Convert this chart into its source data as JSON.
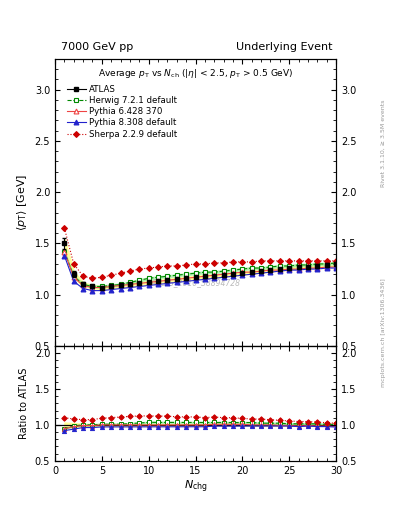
{
  "title_left": "7000 GeV pp",
  "title_right": "Underlying Event",
  "watermark": "ATLAS_2010_S8894728",
  "xlim": [
    0,
    30
  ],
  "ylim_main": [
    0.5,
    3.3
  ],
  "ylim_ratio": [
    0.5,
    2.1
  ],
  "yticks_main": [
    0.5,
    1.0,
    1.5,
    2.0,
    2.5,
    3.0
  ],
  "yticks_ratio": [
    0.5,
    1.0,
    1.5,
    2.0
  ],
  "x_atlas": [
    1,
    2,
    3,
    4,
    5,
    6,
    7,
    8,
    9,
    10,
    11,
    12,
    13,
    14,
    15,
    16,
    17,
    18,
    19,
    20,
    21,
    22,
    23,
    24,
    25,
    26,
    27,
    28,
    29,
    30
  ],
  "y_atlas": [
    1.5,
    1.2,
    1.1,
    1.08,
    1.07,
    1.08,
    1.09,
    1.1,
    1.11,
    1.12,
    1.13,
    1.14,
    1.15,
    1.16,
    1.17,
    1.18,
    1.18,
    1.19,
    1.2,
    1.21,
    1.22,
    1.23,
    1.24,
    1.25,
    1.26,
    1.27,
    1.27,
    1.28,
    1.29,
    1.3
  ],
  "y_atlas_err": [
    0.05,
    0.03,
    0.02,
    0.015,
    0.015,
    0.015,
    0.015,
    0.015,
    0.015,
    0.015,
    0.015,
    0.015,
    0.015,
    0.015,
    0.015,
    0.015,
    0.015,
    0.015,
    0.015,
    0.015,
    0.015,
    0.015,
    0.015,
    0.015,
    0.015,
    0.015,
    0.015,
    0.015,
    0.015,
    0.015
  ],
  "x_herwig": [
    1,
    2,
    3,
    4,
    5,
    6,
    7,
    8,
    9,
    10,
    11,
    12,
    13,
    14,
    15,
    16,
    17,
    18,
    19,
    20,
    21,
    22,
    23,
    24,
    25,
    26,
    27,
    28,
    29,
    30
  ],
  "y_herwig": [
    1.42,
    1.18,
    1.1,
    1.08,
    1.08,
    1.09,
    1.1,
    1.12,
    1.14,
    1.16,
    1.17,
    1.18,
    1.19,
    1.2,
    1.21,
    1.22,
    1.22,
    1.23,
    1.24,
    1.25,
    1.26,
    1.26,
    1.27,
    1.28,
    1.28,
    1.29,
    1.29,
    1.3,
    1.3,
    1.31
  ],
  "x_pythia6": [
    1,
    2,
    3,
    4,
    5,
    6,
    7,
    8,
    9,
    10,
    11,
    12,
    13,
    14,
    15,
    16,
    17,
    18,
    19,
    20,
    21,
    22,
    23,
    24,
    25,
    26,
    27,
    28,
    29,
    30
  ],
  "y_pythia6": [
    1.42,
    1.17,
    1.09,
    1.07,
    1.07,
    1.08,
    1.09,
    1.1,
    1.11,
    1.12,
    1.13,
    1.14,
    1.15,
    1.16,
    1.17,
    1.18,
    1.19,
    1.2,
    1.21,
    1.22,
    1.22,
    1.23,
    1.24,
    1.24,
    1.25,
    1.25,
    1.26,
    1.26,
    1.27,
    1.27
  ],
  "x_pythia8": [
    1,
    2,
    3,
    4,
    5,
    6,
    7,
    8,
    9,
    10,
    11,
    12,
    13,
    14,
    15,
    16,
    17,
    18,
    19,
    20,
    21,
    22,
    23,
    24,
    25,
    26,
    27,
    28,
    29,
    30
  ],
  "y_pythia8": [
    1.38,
    1.13,
    1.06,
    1.04,
    1.04,
    1.05,
    1.06,
    1.07,
    1.08,
    1.09,
    1.1,
    1.11,
    1.12,
    1.13,
    1.14,
    1.15,
    1.16,
    1.17,
    1.18,
    1.19,
    1.2,
    1.21,
    1.22,
    1.23,
    1.24,
    1.24,
    1.25,
    1.25,
    1.26,
    1.26
  ],
  "x_sherpa": [
    1,
    2,
    3,
    4,
    5,
    6,
    7,
    8,
    9,
    10,
    11,
    12,
    13,
    14,
    15,
    16,
    17,
    18,
    19,
    20,
    21,
    22,
    23,
    24,
    25,
    26,
    27,
    28,
    29,
    30
  ],
  "y_sherpa": [
    1.65,
    1.3,
    1.18,
    1.16,
    1.17,
    1.19,
    1.21,
    1.23,
    1.25,
    1.26,
    1.27,
    1.28,
    1.28,
    1.29,
    1.3,
    1.3,
    1.31,
    1.31,
    1.32,
    1.32,
    1.32,
    1.33,
    1.33,
    1.33,
    1.33,
    1.33,
    1.33,
    1.33,
    1.33,
    1.33
  ],
  "atlas_color": "#000000",
  "herwig_color": "#008800",
  "pythia6_color": "#ee4444",
  "pythia8_color": "#2222cc",
  "sherpa_color": "#cc0000",
  "atlas_band_color": "#ffff99",
  "herwig_band_color": "#99ee99",
  "right_label1": "Rivet 3.1.10, ≥ 3.5M events",
  "right_label2": "mcplots.cern.ch [arXiv:1306.3436]"
}
